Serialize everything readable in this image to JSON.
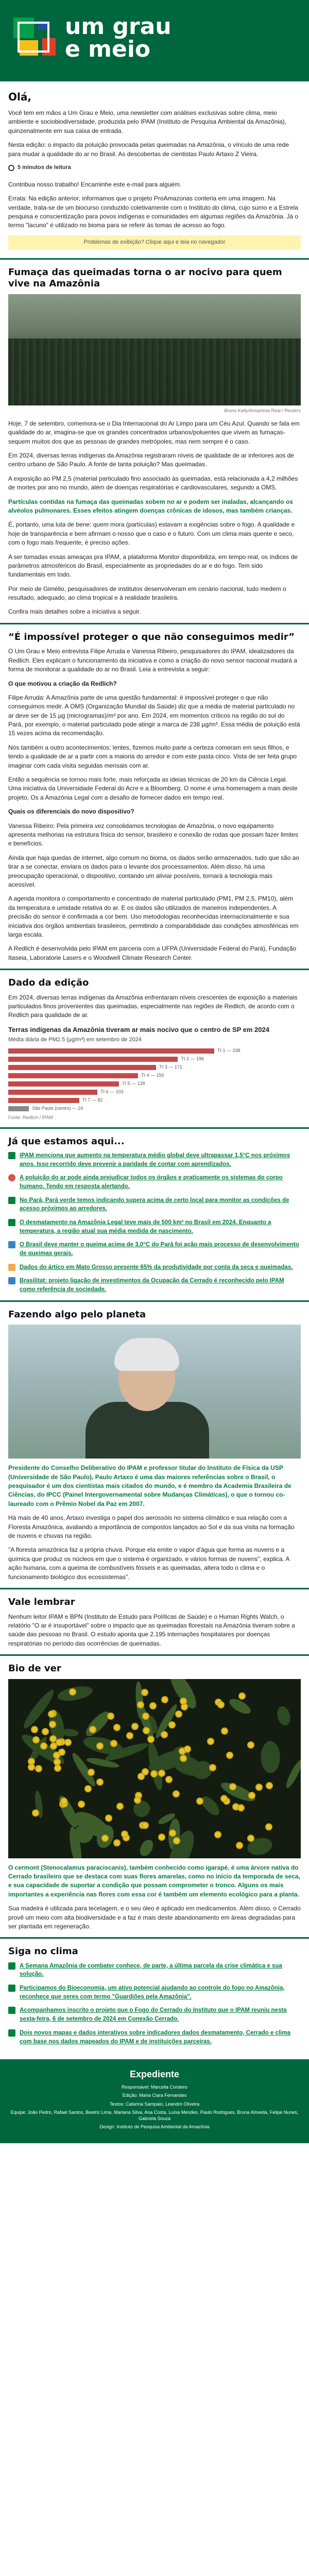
{
  "header": {
    "title": "um grau\ne meio"
  },
  "intro": {
    "greeting": "Olá,",
    "paragraph1": "Você tem em mãos a Um Grau e Meio, uma newsletter com análises exclusivas sobre clima, meio ambiente e sociobiodiversidade, produzida pelo IPAM (Instituto de Pesquisa Ambiental da Amazônia), quinzenalmente em sua caixa de entrada.",
    "paragraph2": "Nesta edição: o impacto da poluição provocada pelas queimadas na Amazônia, o vínculo de uma rede para mudar a qualidade do ar no Brasil. As descobertas de cientistas Paulo Artaxo Z Vieira.",
    "readtime": "5 minutos de leitura",
    "forward": "Contribua nosso trabalho! Encaminhe este e-mail para alguém.",
    "errata": "Errata: Na edição anterior, informamos que o projeto ProAmazonas conteria em uma imagem. Na verdade, trata-se de um biocurso conduzido coletivamente com o Instituto do clima, cujo sumo e a Estrela pesquisa e conscientização para povos indígenas e comunidades em algumas regiões da Amazônia. Já o termo \"lacuno\" é utilizado no bioma para se referir às tomas de acesso ao fogo.",
    "feedback": "Problemas de exibição? Clique aqui e leia no navegador"
  },
  "section1": {
    "title": "Fumaça das queimadas torna o ar nocivo para quem vive na Amazônia",
    "photo_caption": "Bruno Kelly/Amazônia Real / Reuters",
    "p1": "Hoje, 7 de setembro, comemora-se o Dia Internacional do Ar Limpo para um Céu Azul. Quando se fala em qualidade do ar, imagina-se que os grandes concentrados urbanos/poluentes que vivem as fumaças-sequem muitos dos que as pessoas de grandes metrópoles, mas nem sempre é o caso.",
    "p2": "Em 2024, diversas terras indígenas da Amazônia registraram níveis de qualidade de ar inferiores aos de centro urbano de São Paulo. A fonte de tanta poluição? Mas queimadas.",
    "p3": "A exposição ao PM 2,5 (material particulado fino associado às queimadas, está relacionada a 4,2 milhões de mortes por ano no mundo, além de doenças respiratórias e cardiovasculares, segundo a OMS.",
    "p4": "Partículas contidas na fumaça das queimadas sobem no ar e podem ser inaladas, alcançando os alvéolos pulmonares. Esses efeitos atingem doenças crônicas de idosos, mas também crianças.",
    "p5": "É, portanto, uma luta de bene: quem mora (partículas) estavam a exigências sobre o fogo. A qualidade e hoje de transparência e bem afirmam o nosso que o caso e o futuro. Com um clima mais quente e seco, com o fogo mais frequente, é preciso ações.",
    "p6": "A ser tomadas essas ameaças pra IPAM, a plataforma Monitor disponibiliza, em tempo real, os índices de parâmetros atmosféricos do Brasil, especialmente as propriedades do ar e do fogo. Tem sido fundamentais em todo.",
    "p7": "Por meio de Gimélio, pesquisadores de institutos desenvolveram em cenário nacional, tudo medem o resultado, adequado, ao clima tropical e à realidade brasileira.",
    "p8": "Confira mais detalhes sobre a iniciativa a seguir."
  },
  "section2": {
    "title": "“É impossível proteger o que não conseguimos medir”",
    "p1": "O Um Grau e Meio entrevista Filipe Arruda e Vanessa Ribeiro, pesquisadores do IPAM, idealizadores da Redlich. Eles explicam o funcionamento da iniciativa e como a criação do novo sensor nacional mudará a forma de monitorar a qualidade do ar no Brasil. Leia a entrevista a seguir:",
    "q1": "O que motivou a criação da Redlich?",
    "a1": "Filipe Arruda: A Amazônia parte de uma questão fundamental: é impossível proteger o que não conseguimos medir. A OMS (Organização Mundial da Saúde) diz que a média de material particulado no ar deve ser de 15 µg (microgramas)/m³ por ano. Em 2024, em momentos críticos na região do sul do Pará, por exemplo, o material particulado pode atingir a marca de 238 µg/m³. Essa média de poluição está 15 vezes acima da recomendação.",
    "a1b": "Nós também a outro acontecimentos: lentes, fizemos muito parte a certeza comeram em seus filhos, e tendo a qualidade de ar a partir com a maioria do arredor e com este pasta cinco. Vista de ser feita grupo imaginar com cada visita seguidas mensais com ar.",
    "a1c": "Então a sequência se tornou mais forte, mais reforçada as ideias técnicas de 20 km da Ciência Legal. Uma iniciativa da Universidade Federal do Acre e a Bloomberg. O nome é uma homenagem a mais deste projeto, Os a Amazônia Legal com a desafio de fornecer dados em tempo real.",
    "q2": "Quais os diferenciais do novo dispositivo?",
    "a2": "Vanessa Ribeiro: Pela primeira vez consolidamos tecnologias de Amazônia, o novo equipamento apresenta melhorias na estrutura física do sensor, brasileiro e conexão de rodas que possam fazer limites e benefícios.",
    "a2b": "Ainda que haja quedas de internet, algo comum no bioma, os dados serão armazenados, tudo que são ao tirar a se conectar, enviara os dados para o levante dos processamentos. Além disso, há uma preocupação operacional, o dispositivo, contando um aliviar possíveis, tornará a tecnologia mais acessível.",
    "a2c": "A agenda monitora o comportamento e concentrado de material particulado (PM1, PM 2,5, PM10), além da temperatura e umidade relativa do ar. E os dados são utilizados de maneiros independentes. A precisão do sensor é confirmada a cor bem. Uso metodologias reconhecidas internacionalmente e sua iniciativa dos órgãos ambientais brasileiros, permitindo a comparabilidade das condições atmosféricas em larga escala.",
    "a2d": "A Redlich é desenvolvida pelo IPAM em parceria com a UFPA (Universidade Federal do Pará), Fundação Itaseia, Laboratorie Lasers e o Woodwell Climate Research Center."
  },
  "section3": {
    "title": "Dado da edição",
    "p1": "Em 2024, diversas terras indígenas da Amazônia enfrentaram níveis crescentes de exposição a materiais particulados finos provenientes das queimadas, especialmente nas regiões de Redlich, de acordo com o Redlich para qualidade de ar.",
    "chart_link": "Terras indígenas da Amazônia tiveram ar mais nocivo que o centro de SP em 2024"
  },
  "chart_data": {
    "type": "bar",
    "title": "Terras indígenas da Amazônia tiveram ar mais nocivo que o centro de SP em 2024",
    "subtitle": "Média diária de PM2.5 (µg/m³) em setembro de 2024",
    "categories": [
      "TI 1",
      "TI 2",
      "TI 3",
      "TI 4",
      "TI 5",
      "TI 6",
      "TI 7",
      "São Paulo (centro)"
    ],
    "values": [
      238,
      196,
      171,
      150,
      128,
      103,
      82,
      24
    ],
    "source": "Fonte: Redlich / IPAM",
    "bar_color": "#c44a4a"
  },
  "section4": {
    "title": "Já que estamos aqui...",
    "bullets": [
      {
        "icon": "megaphone-icon",
        "color": "green",
        "text": "IPAM menciona que aumento na temperatura médio global deve ultrapassar 1,5°C nos próximos anos. Isso recorrido deve prevenir a paridade de contar com aprendizados."
      },
      {
        "icon": "flame-icon",
        "color": "red",
        "text": "A poluição do ar pode ainda prejudicar todos os órgãos e praticamente os sistemas do corpo humano. Tendo em resposta alertando."
      },
      {
        "icon": "people-icon",
        "color": "green",
        "text": "No Pará, Pará verde temos indicando supera acima de certo local para monitor as condições de acesso próximos ao arredores."
      },
      {
        "icon": "leaf-icon",
        "color": "green",
        "text": "O desmatamento na Amazônia Legal teve mais de 500 km² no Brasil em 2024. Enquanto a temperatura, a região atual sua média medida de nascimento."
      },
      {
        "icon": "chart-icon",
        "color": "blue",
        "text": "O Brasil deve manter o queima acima de 3,0°C do Pará foi ação mais processo de desenvolvimento de queimas gerais."
      },
      {
        "icon": "warning-icon",
        "color": "yellow",
        "text": "Dados do ártico em Mato Grosso presente 65% da produtividade por conta da seca e queimadas."
      },
      {
        "icon": "globe-icon",
        "color": "blue",
        "text": "Brasilitat: projeto ligação de investimentos da Ocupação da Cerrado é reconhecido pelo IPAM como referência de sociedade."
      }
    ]
  },
  "section5": {
    "title": "Fazendo algo pelo planeta",
    "p1": "Presidente do Conselho Deliberativo do IPAM e professor titular do Instituto de Física da USP (Universidade de São Paulo), Paulo Artaxo é uma das maiores referências sobre o Brasil, o pesquisador é um dos cientistas mais citados do mundo, e é membro da Academia Brasileira de Ciências, do IPCC (Painel Intergovernamental sobre Mudanças Climáticas), o que o tornou co-laureado com o Prêmio Nobel da Paz em 2007.",
    "p2": "Há mais de 40 anos, Artaxo investiga o papel dos aerossóis no sistema climático e sua relação com a Floresta Amazônica, avaliando a importância de compostos lançados ao Sol e da sua visita na formação de nuvens e chuvas na região.",
    "p3": "\"A floresta amazônica faz a própria chuva. Porque ela emite o vapor d'água que forma as nuvens e a química que produz os núcleos em que o sistema é organizado, e vários formas de nuvens\", explica. A ação humana, com a queima de combustíveis fósseis e as queimadas, altera todo o clima e o funcionamento biológico dos ecossistemas\"."
  },
  "section6": {
    "title": "Vale lembrar",
    "p1": "Nenhum leitor IPAM e BPN (Instituto de Estudo para Políticas de Saúde) e o Human Rights Watch, o relatório \"O ar é insuportável\" sobre o impacto que as queimadas florestais na Amazônia tiveram sobre a saúde das pessoas no Brasil. O estudo aponta que 2.195 internações hospitalares por doenças respiratórias no período das ocorrências de queimadas."
  },
  "section7": {
    "title": "Bio de ver",
    "p1": "O cermont (Stenocalamus paraciscanis), também conhecido como igarapé, é uma árvore nativa do Cerrado brasileiro que se destaca com suas flores amarelas, como no início da temporada de seca, e sua capacidade de suportar a condição que possam comprometer o tronco. Alguns os mais importantes a experiência nas flores com essa cor é também um elemento ecológico para a planta.",
    "p2": "Sua madeira é utilizada para tecelagem, e o seu óleo é aplicado em medicamentos. Além disso, o Cerrado provê um meio com alta biodiversidade e a faz é mais deste abandonamento em áreas degradadas para ser plantada em regeneração."
  },
  "section8": {
    "title": "Siga no clima",
    "bullets": [
      {
        "icon": "calendar-icon",
        "color": "green",
        "text": "A Semana Amazônia de combater conhece, de parte, a última parcela da crise climática e sua solução."
      },
      {
        "icon": "megaphone-icon",
        "color": "green",
        "text": "Participamos do Bioeconomia, um ativo potencial ajudando ao controle do fogo no Amazônia, reconhece que seres com termo \"Guardiões pela Amazônia\"."
      },
      {
        "icon": "play-icon",
        "color": "green",
        "text": "Acompanhamos inscrito o projeto que o Fogo do Cerrado do Instituto que o IPAM reuniu nesta sexta-feira, 6 de setembro de 2024 em Conexão Cerrado."
      },
      {
        "icon": "map-icon",
        "color": "green",
        "text": "Dois novos mapas e dados interativos sobre indicadores dados desmatamento, Cerrado e clima com base nos dados mapeados do IPAM e de instituições parceiras."
      }
    ]
  },
  "footer": {
    "title": "Expediente",
    "lines": [
      "Responsável: Marcella Cordeiro",
      "Edição: Maria Clara Fernandes",
      "Textos: Catarina Sampaio, Leandro Oliveira",
      "Equipe: João Pedro, Rafael Santos, Beatriz Lima, Mariana Silva, Ana Costa, Luísa Mendes, Paulo Rodrigues, Bruna Almeida, Felipe Nunes, Gabriela Souza",
      "Design: Instituto de Pesquisa Ambiental da Amazônia"
    ]
  }
}
